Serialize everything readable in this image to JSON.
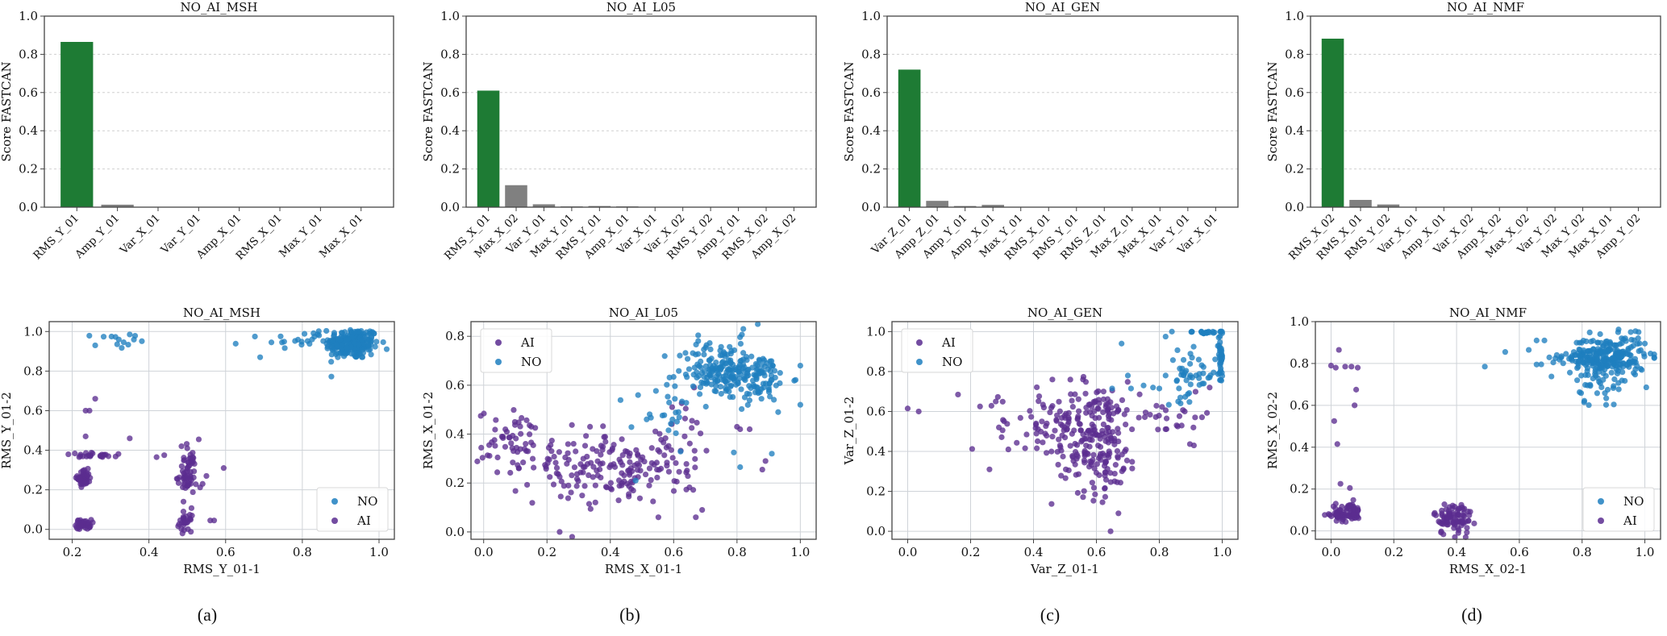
{
  "colors": {
    "top_bar": "#1e7b34",
    "other_bar": "#808080",
    "ai": "#5b2d90",
    "no": "#1f7fbf",
    "grid": "#cccccc",
    "axis": "#444444"
  },
  "panel_labels": [
    "(a)",
    "(b)",
    "(c)",
    "(d)"
  ],
  "chart_data": [
    {
      "type": "bar",
      "title": "NO_AI_MSH",
      "ylabel": "Score FASTCAN",
      "xlabel": "",
      "ylim": [
        0,
        1.0
      ],
      "yticks": [
        "0.0",
        "0.2",
        "0.4",
        "0.6",
        "0.8",
        "1.0"
      ],
      "grid": "y-dashed",
      "categories": [
        "RMS_Y_01",
        "Amp_Y_01",
        "Var_X_01",
        "Var_Y_01",
        "Amp_X_01",
        "RMS_X_01",
        "Max_Y_01",
        "Max_X_01"
      ],
      "values": [
        0.865,
        0.013,
        0.0,
        0.0,
        0.0,
        0.0,
        0.0,
        0.0
      ]
    },
    {
      "type": "bar",
      "title": "NO_AI_L05",
      "ylabel": "Score FASTCAN",
      "xlabel": "",
      "ylim": [
        0,
        1.0
      ],
      "yticks": [
        "0.0",
        "0.2",
        "0.4",
        "0.6",
        "0.8",
        "1.0"
      ],
      "grid": "y-dashed",
      "categories": [
        "RMS_X_01",
        "Max_X_02",
        "Var_Y_01",
        "Max_Y_01",
        "RMS_Y_01",
        "Amp_X_01",
        "Var_X_01",
        "Var_X_02",
        "RMS_Y_02",
        "Amp_Y_01",
        "RMS_X_02",
        "Amp_X_02"
      ],
      "values": [
        0.61,
        0.115,
        0.015,
        0.004,
        0.006,
        0.004,
        0.002,
        0.002,
        0.002,
        0.0,
        0.0,
        0.0
      ]
    },
    {
      "type": "bar",
      "title": "NO_AI_GEN",
      "ylabel": "Score FASTCAN",
      "xlabel": "",
      "ylim": [
        0,
        1.0
      ],
      "yticks": [
        "0.0",
        "0.2",
        "0.4",
        "0.6",
        "0.8",
        "1.0"
      ],
      "grid": "y-dashed",
      "categories": [
        "Var_Z_01",
        "Amp_Z_01",
        "Amp_Y_01",
        "Amp_X_01",
        "Max_Y_01",
        "RMS_X_01",
        "RMS_Y_01",
        "RMS_Z_01",
        "Max_Z_01",
        "Max_X_01",
        "Var_Y_01",
        "Var_X_01"
      ],
      "values": [
        0.72,
        0.033,
        0.006,
        0.012,
        0.0,
        0.0,
        0.0,
        0.0,
        0.0,
        0.0,
        0.0,
        0.0
      ]
    },
    {
      "type": "bar",
      "title": "NO_AI_NMF",
      "ylabel": "Score FASTCAN",
      "xlabel": "",
      "ylim": [
        0,
        1.0
      ],
      "yticks": [
        "0.0",
        "0.2",
        "0.4",
        "0.6",
        "0.8",
        "1.0"
      ],
      "grid": "y-dashed",
      "categories": [
        "RMS_X_02",
        "RMS_X_01",
        "RMS_Y_02",
        "Var_X_01",
        "Amp_X_01",
        "Var_X_02",
        "Amp_X_02",
        "Max_X_02",
        "Var_Y_02",
        "Max_Y_02",
        "Max_X_01",
        "Amp_Y_02"
      ],
      "values": [
        0.882,
        0.038,
        0.014,
        0.0,
        0.0,
        0.0,
        0.0,
        0.0,
        0.0,
        0.0,
        0.0,
        0.0
      ]
    },
    {
      "type": "scatter",
      "title": "NO_AI_MSH",
      "xlabel": "RMS_Y_01-1",
      "ylabel": "RMS_Y_01-2",
      "xlim": [
        0.14,
        1.04
      ],
      "ylim": [
        -0.05,
        1.05
      ],
      "xticks": [
        "0.2",
        "0.4",
        "0.6",
        "0.8",
        "1.0"
      ],
      "yticks": [
        "0.0",
        "0.2",
        "0.4",
        "0.6",
        "0.8",
        "1.0"
      ],
      "grid": "both",
      "legend": {
        "position": "lower-right",
        "order": [
          "NO",
          "AI"
        ]
      },
      "series": [
        {
          "name": "NO",
          "clusters": [
            {
              "cx": 0.93,
              "cy": 0.94,
              "sx": 0.035,
              "sy": 0.04,
              "n": 220
            },
            {
              "cx": 0.8,
              "cy": 0.955,
              "sx": 0.07,
              "sy": 0.02,
              "n": 25
            },
            {
              "cx": 0.31,
              "cy": 0.955,
              "sx": 0.03,
              "sy": 0.02,
              "n": 12
            }
          ],
          "points": [
            [
              0.69,
              0.87
            ],
            [
              0.26,
              0.93
            ],
            [
              0.35,
              0.985
            ]
          ]
        },
        {
          "name": "AI",
          "clusters": [
            {
              "cx": 0.23,
              "cy": 0.26,
              "sx": 0.008,
              "sy": 0.02,
              "n": 60
            },
            {
              "cx": 0.23,
              "cy": 0.025,
              "sx": 0.01,
              "sy": 0.012,
              "n": 50
            },
            {
              "cx": 0.5,
              "cy": 0.28,
              "sx": 0.012,
              "sy": 0.06,
              "n": 60
            },
            {
              "cx": 0.495,
              "cy": 0.03,
              "sx": 0.008,
              "sy": 0.02,
              "n": 25
            },
            {
              "cx": 0.27,
              "cy": 0.375,
              "sx": 0.05,
              "sy": 0.006,
              "n": 25
            }
          ],
          "points": [
            [
              0.26,
              0.66
            ],
            [
              0.235,
              0.6
            ],
            [
              0.245,
              0.6
            ],
            [
              0.235,
              0.47
            ],
            [
              0.35,
              0.46
            ],
            [
              0.44,
              0.375
            ],
            [
              0.42,
              0.365
            ],
            [
              0.485,
              0.42
            ],
            [
              0.5,
              0.41
            ],
            [
              0.53,
              0.455
            ],
            [
              0.595,
              0.31
            ],
            [
              0.55,
              0.27
            ],
            [
              0.56,
              0.045
            ],
            [
              0.57,
              0.045
            ],
            [
              0.54,
              0.23
            ],
            [
              0.49,
              0.09
            ]
          ]
        }
      ]
    },
    {
      "type": "scatter",
      "title": "NO_AI_L05",
      "xlabel": "RMS_X_01-1",
      "ylabel": "RMS_X_01-2",
      "xlim": [
        -0.04,
        1.05
      ],
      "ylim": [
        -0.03,
        0.86
      ],
      "xticks": [
        "0.0",
        "0.2",
        "0.4",
        "0.6",
        "0.8",
        "1.0"
      ],
      "yticks": [
        "0.0",
        "0.2",
        "0.4",
        "0.6",
        "0.8"
      ],
      "grid": "both",
      "legend": {
        "position": "upper-left",
        "order": [
          "AI",
          "NO"
        ]
      },
      "series": [
        {
          "name": "AI",
          "clusters": [
            {
              "cx": 0.1,
              "cy": 0.36,
              "sx": 0.06,
              "sy": 0.07,
              "n": 60
            },
            {
              "cx": 0.32,
              "cy": 0.27,
              "sx": 0.08,
              "sy": 0.08,
              "n": 90
            },
            {
              "cx": 0.47,
              "cy": 0.24,
              "sx": 0.06,
              "sy": 0.06,
              "n": 70
            },
            {
              "cx": 0.62,
              "cy": 0.35,
              "sx": 0.06,
              "sy": 0.11,
              "n": 35
            }
          ],
          "points": [
            [
              0.24,
              0.0
            ],
            [
              0.67,
              0.06
            ],
            [
              0.69,
              0.09
            ],
            [
              0.89,
              0.29
            ],
            [
              0.88,
              0.255
            ],
            [
              0.84,
              0.42
            ],
            [
              0.81,
              0.42
            ],
            [
              0.8,
              0.43
            ]
          ]
        },
        {
          "name": "NO",
          "clusters": [
            {
              "cx": 0.75,
              "cy": 0.66,
              "sx": 0.07,
              "sy": 0.06,
              "n": 180
            },
            {
              "cx": 0.87,
              "cy": 0.63,
              "sx": 0.05,
              "sy": 0.05,
              "n": 70
            },
            {
              "cx": 0.55,
              "cy": 0.46,
              "sx": 0.05,
              "sy": 0.07,
              "n": 20
            }
          ],
          "points": [
            [
              1.0,
              0.68
            ],
            [
              1.0,
              0.52
            ],
            [
              0.91,
              0.32
            ],
            [
              0.81,
              0.265
            ],
            [
              0.79,
              0.325
            ],
            [
              0.82,
              0.83
            ],
            [
              0.48,
              0.21
            ],
            [
              0.93,
              0.49
            ]
          ]
        }
      ]
    },
    {
      "type": "scatter",
      "title": "NO_AI_GEN",
      "xlabel": "Var_Z_01-1",
      "ylabel": "Var_Z_01-2",
      "xlim": [
        -0.05,
        1.05
      ],
      "ylim": [
        -0.04,
        1.05
      ],
      "xticks": [
        "0.0",
        "0.2",
        "0.4",
        "0.6",
        "0.8",
        "1.0"
      ],
      "yticks": [
        "0.0",
        "0.2",
        "0.4",
        "0.6",
        "0.8",
        "1.0"
      ],
      "grid": "both",
      "legend": {
        "position": "upper-left",
        "order": [
          "AI",
          "NO"
        ]
      },
      "series": [
        {
          "name": "AI",
          "clusters": [
            {
              "cx": 0.6,
              "cy": 0.47,
              "sx": 0.07,
              "sy": 0.14,
              "n": 220
            },
            {
              "cx": 0.43,
              "cy": 0.56,
              "sx": 0.07,
              "sy": 0.07,
              "n": 50
            },
            {
              "cx": 0.85,
              "cy": 0.57,
              "sx": 0.06,
              "sy": 0.05,
              "n": 25
            }
          ],
          "points": [
            [
              0.0,
              0.615
            ],
            [
              0.035,
              0.6
            ],
            [
              0.16,
              0.685
            ],
            [
              0.23,
              0.625
            ],
            [
              0.26,
              0.31
            ],
            [
              0.29,
              0.52
            ],
            [
              0.32,
              0.41
            ],
            [
              0.28,
              0.65
            ],
            [
              0.645,
              0.0
            ],
            [
              0.67,
              0.09
            ],
            [
              0.91,
              0.43
            ],
            [
              0.96,
              0.72
            ],
            [
              0.46,
              0.76
            ]
          ]
        },
        {
          "name": "NO",
          "clusters": [
            {
              "cx": 0.9,
              "cy": 0.78,
              "sx": 0.04,
              "sy": 0.06,
              "n": 45
            },
            {
              "cx": 0.995,
              "cy": 0.88,
              "sx": 0.004,
              "sy": 0.08,
              "n": 40
            },
            {
              "cx": 0.94,
              "cy": 0.997,
              "sx": 0.03,
              "sy": 0.003,
              "n": 18
            }
          ],
          "points": [
            [
              0.68,
              0.94
            ],
            [
              0.84,
              1.0
            ],
            [
              0.82,
              0.975
            ],
            [
              0.7,
              0.78
            ],
            [
              0.82,
              0.78
            ],
            [
              0.65,
              0.715
            ],
            [
              0.75,
              0.73
            ],
            [
              0.8,
              0.715
            ],
            [
              0.78,
              0.72
            ],
            [
              0.71,
              0.715
            ],
            [
              0.86,
              0.65
            ]
          ]
        }
      ]
    },
    {
      "type": "scatter",
      "title": "NO_AI_NMF",
      "xlabel": "RMS_X_02-1",
      "ylabel": "RMS_X_02-2",
      "xlim": [
        -0.05,
        1.05
      ],
      "ylim": [
        -0.04,
        1.0
      ],
      "xticks": [
        "0.0",
        "0.2",
        "0.4",
        "0.6",
        "0.8",
        "1.0"
      ],
      "yticks": [
        "0.0",
        "0.2",
        "0.4",
        "0.6",
        "0.8",
        "1.0"
      ],
      "grid": "both",
      "legend": {
        "position": "lower-right",
        "order": [
          "NO",
          "AI"
        ]
      },
      "series": [
        {
          "name": "NO",
          "clusters": [
            {
              "cx": 0.88,
              "cy": 0.83,
              "sx": 0.06,
              "sy": 0.05,
              "n": 260
            },
            {
              "cx": 0.85,
              "cy": 0.68,
              "sx": 0.04,
              "sy": 0.04,
              "n": 25
            },
            {
              "cx": 0.74,
              "cy": 0.83,
              "sx": 0.04,
              "sy": 0.02,
              "n": 15
            }
          ],
          "points": [
            [
              0.49,
              0.785
            ],
            [
              0.555,
              0.855
            ],
            [
              0.63,
              0.865
            ],
            [
              0.655,
              0.91
            ],
            [
              0.68,
              0.91
            ],
            [
              0.655,
              0.795
            ],
            [
              0.955,
              0.95
            ],
            [
              0.98,
              0.95
            ],
            [
              1.0,
              0.895
            ]
          ]
        },
        {
          "name": "AI",
          "clusters": [
            {
              "cx": 0.025,
              "cy": 0.08,
              "sx": 0.015,
              "sy": 0.015,
              "n": 45
            },
            {
              "cx": 0.07,
              "cy": 0.09,
              "sx": 0.01,
              "sy": 0.02,
              "n": 45
            },
            {
              "cx": 0.39,
              "cy": 0.06,
              "sx": 0.03,
              "sy": 0.04,
              "n": 90
            }
          ],
          "points": [
            [
              0.025,
              0.865
            ],
            [
              0.0,
              0.79
            ],
            [
              0.015,
              0.78
            ],
            [
              0.045,
              0.785
            ],
            [
              0.065,
              0.785
            ],
            [
              0.085,
              0.78
            ],
            [
              0.08,
              0.675
            ],
            [
              0.075,
              0.6
            ],
            [
              0.01,
              0.525
            ],
            [
              0.02,
              0.415
            ],
            [
              0.03,
              0.225
            ],
            [
              0.06,
              0.205
            ],
            [
              0.015,
              0.13
            ]
          ]
        }
      ]
    }
  ]
}
